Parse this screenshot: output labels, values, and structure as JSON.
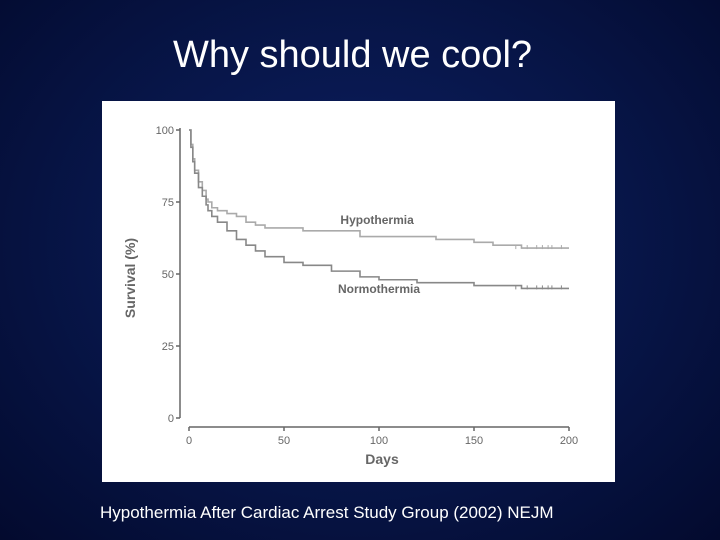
{
  "slide": {
    "title": "Why should we cool?",
    "caption": "Hypothermia After Cardiac Arrest Study Group (2002) NEJM"
  },
  "chart_data": {
    "type": "line",
    "xlabel": "Days",
    "ylabel": "Survival (%)",
    "xlim": [
      0,
      200
    ],
    "ylim": [
      0,
      100
    ],
    "xticks": [
      0,
      50,
      100,
      150,
      200
    ],
    "yticks": [
      0,
      25,
      50,
      75,
      100
    ],
    "grid": false,
    "series": [
      {
        "name": "Hypothermia",
        "color": "#aaaaaa",
        "x": [
          0,
          1,
          2,
          3,
          5,
          7,
          9,
          10,
          12,
          15,
          20,
          25,
          30,
          35,
          40,
          50,
          60,
          75,
          90,
          100,
          120,
          130,
          150,
          160,
          175,
          200
        ],
        "y": [
          100,
          95,
          90,
          86,
          82,
          79,
          76,
          75,
          73,
          72,
          71,
          70,
          68,
          67,
          66,
          66,
          65,
          65,
          63,
          63,
          63,
          62,
          61,
          60,
          59,
          59
        ]
      },
      {
        "name": "Normothermia",
        "color": "#888888",
        "x": [
          0,
          1,
          2,
          3,
          5,
          7,
          9,
          10,
          12,
          15,
          20,
          25,
          30,
          35,
          40,
          50,
          60,
          75,
          90,
          100,
          120,
          130,
          150,
          160,
          175,
          200
        ],
        "y": [
          100,
          94,
          89,
          85,
          80,
          77,
          74,
          72,
          70,
          68,
          65,
          62,
          60,
          58,
          56,
          54,
          53,
          51,
          49,
          48,
          47,
          47,
          46,
          46,
          45,
          45
        ]
      }
    ]
  }
}
